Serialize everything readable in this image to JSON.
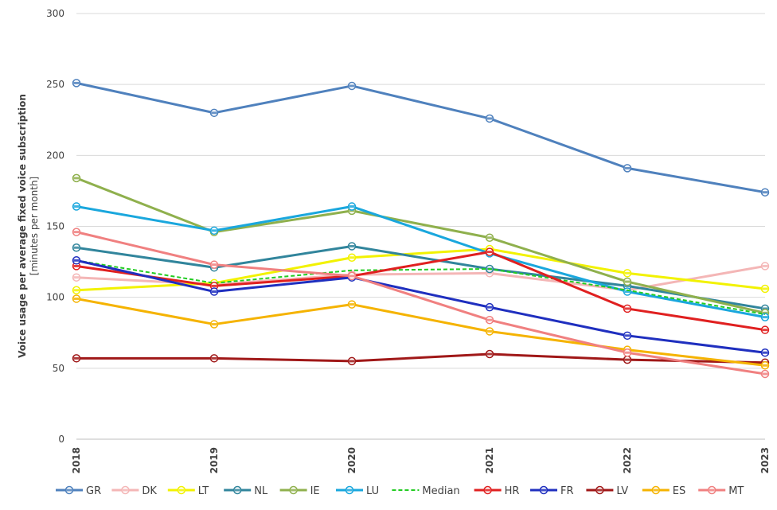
{
  "chart_data": {
    "type": "line",
    "title": "",
    "ylabel_line1": "Voice usage per average fixed voice subscription",
    "ylabel_line2": "[minutes per month]",
    "xlabel": "",
    "categories": [
      "2018",
      "2019",
      "2020",
      "2021",
      "2022",
      "2023"
    ],
    "ylim": [
      0,
      300
    ],
    "yticks": [
      0,
      50,
      100,
      150,
      200,
      250,
      300
    ],
    "grid": true,
    "legend_position": "bottom",
    "series": [
      {
        "name": "GR",
        "color": "#4f81bd",
        "dashed": false,
        "values": [
          251,
          230,
          249,
          226,
          191,
          174
        ]
      },
      {
        "name": "DK",
        "color": "#f4b6b6",
        "dashed": false,
        "values": [
          114,
          109,
          116,
          117,
          105,
          122
        ]
      },
      {
        "name": "LT",
        "color": "#f2f200",
        "dashed": false,
        "values": [
          105,
          110,
          128,
          134,
          117,
          106
        ]
      },
      {
        "name": "NL",
        "color": "#31859c",
        "dashed": false,
        "values": [
          135,
          121,
          136,
          120,
          108,
          92
        ]
      },
      {
        "name": "IE",
        "color": "#8fb04d",
        "dashed": false,
        "values": [
          184,
          146,
          161,
          142,
          111,
          89
        ]
      },
      {
        "name": "LU",
        "color": "#1aa7dd",
        "dashed": false,
        "values": [
          164,
          147,
          164,
          131,
          104,
          86
        ]
      },
      {
        "name": "Median",
        "color": "#22cc22",
        "dashed": true,
        "values": [
          126,
          110,
          119,
          120,
          105,
          88
        ]
      },
      {
        "name": "HR",
        "color": "#e02020",
        "dashed": false,
        "values": [
          122,
          108,
          115,
          132,
          92,
          77
        ]
      },
      {
        "name": "FR",
        "color": "#1f2fbf",
        "dashed": false,
        "values": [
          126,
          104,
          114,
          93,
          73,
          61
        ]
      },
      {
        "name": "LV",
        "color": "#a01818",
        "dashed": false,
        "values": [
          57,
          57,
          55,
          60,
          56,
          54
        ]
      },
      {
        "name": "ES",
        "color": "#f5b300",
        "dashed": false,
        "values": [
          99,
          81,
          95,
          76,
          63,
          52
        ]
      },
      {
        "name": "MT",
        "color": "#f08080",
        "dashed": false,
        "values": [
          146,
          123,
          115,
          84,
          61,
          46
        ]
      }
    ]
  }
}
